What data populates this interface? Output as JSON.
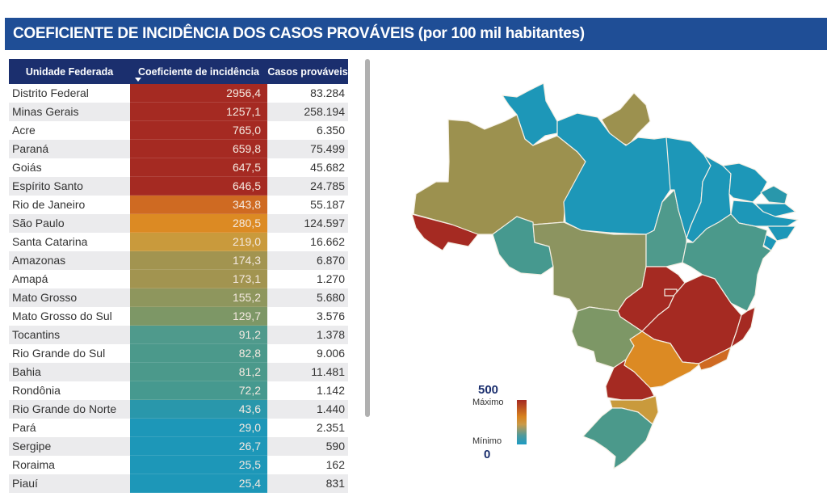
{
  "title": "COEFICIENTE DE INCIDÊNCIA DOS CASOS PROVÁVEIS (por 100 mil habitantes)",
  "table": {
    "headers": [
      "Unidade Federada",
      "Coeficiente de incidência",
      "Casos prováveis"
    ],
    "sorted_column": "Coeficiente de incidência",
    "sort_direction": "descending",
    "rows": [
      {
        "uf": "Distrito Federal",
        "coef": "2956,4",
        "casos": "83.284",
        "color": "#a52a22"
      },
      {
        "uf": "Minas Gerais",
        "coef": "1257,1",
        "casos": "258.194",
        "color": "#a52a22"
      },
      {
        "uf": "Acre",
        "coef": "765,0",
        "casos": "6.350",
        "color": "#a52a22"
      },
      {
        "uf": "Paraná",
        "coef": "659,8",
        "casos": "75.499",
        "color": "#a52a22"
      },
      {
        "uf": "Goiás",
        "coef": "647,5",
        "casos": "45.682",
        "color": "#a52a22"
      },
      {
        "uf": "Espírito Santo",
        "coef": "646,5",
        "casos": "24.785",
        "color": "#a52a22"
      },
      {
        "uf": "Rio de Janeiro",
        "coef": "343,8",
        "casos": "55.187",
        "color": "#cf6a22"
      },
      {
        "uf": "São Paulo",
        "coef": "280,5",
        "casos": "124.597",
        "color": "#dc8a23"
      },
      {
        "uf": "Santa Catarina",
        "coef": "219,0",
        "casos": "16.662",
        "color": "#c99a3c"
      },
      {
        "uf": "Amazonas",
        "coef": "174,3",
        "casos": "6.870",
        "color": "#a29450"
      },
      {
        "uf": "Amapá",
        "coef": "173,1",
        "casos": "1.270",
        "color": "#a29450"
      },
      {
        "uf": "Mato Grosso",
        "coef": "155,2",
        "casos": "5.680",
        "color": "#8e965d"
      },
      {
        "uf": "Mato Grosso do Sul",
        "coef": "129,7",
        "casos": "3.576",
        "color": "#7d9766"
      },
      {
        "uf": "Tocantins",
        "coef": "91,2",
        "casos": "1.378",
        "color": "#4f9a8c"
      },
      {
        "uf": "Rio Grande do Sul",
        "coef": "82,8",
        "casos": "9.006",
        "color": "#4b998b"
      },
      {
        "uf": "Bahia",
        "coef": "81,2",
        "casos": "11.481",
        "color": "#4b998b"
      },
      {
        "uf": "Rondônia",
        "coef": "72,2",
        "casos": "1.142",
        "color": "#46998f"
      },
      {
        "uf": "Rio Grande do Norte",
        "coef": "43,6",
        "casos": "1.440",
        "color": "#2997ab"
      },
      {
        "uf": "Pará",
        "coef": "29,0",
        "casos": "2.351",
        "color": "#1d97b8"
      },
      {
        "uf": "Sergipe",
        "coef": "26,7",
        "casos": "590",
        "color": "#1d97b8"
      },
      {
        "uf": "Roraima",
        "coef": "25,5",
        "casos": "162",
        "color": "#1d97b8"
      },
      {
        "uf": "Piauí",
        "coef": "25,4",
        "casos": "831",
        "color": "#1d97b8"
      }
    ]
  },
  "legend": {
    "max_value": "500",
    "max_label": "Máximo",
    "min_label": "Mínimo",
    "min_value": "0",
    "gradient": [
      "#a52a22",
      "#d8831f",
      "#c99a49",
      "#4f9a9c",
      "#1d9bc4"
    ]
  },
  "chart_data": {
    "type": "table",
    "title": "COEFICIENTE DE INCIDÊNCIA DOS CASOS PROVÁVEIS (por 100 mil habitantes)",
    "columns": [
      "Unidade Federada",
      "Coeficiente de incidência",
      "Casos prováveis"
    ],
    "categories": [
      "Distrito Federal",
      "Minas Gerais",
      "Acre",
      "Paraná",
      "Goiás",
      "Espírito Santo",
      "Rio de Janeiro",
      "São Paulo",
      "Santa Catarina",
      "Amazonas",
      "Amapá",
      "Mato Grosso",
      "Mato Grosso do Sul",
      "Tocantins",
      "Rio Grande do Sul",
      "Bahia",
      "Rondônia",
      "Rio Grande do Norte",
      "Pará",
      "Sergipe",
      "Roraima",
      "Piauí"
    ],
    "series": [
      {
        "name": "Coeficiente de incidência",
        "values": [
          2956.4,
          1257.1,
          765.0,
          659.8,
          647.5,
          646.5,
          343.8,
          280.5,
          219.0,
          174.3,
          173.1,
          155.2,
          129.7,
          91.2,
          82.8,
          81.2,
          72.2,
          43.6,
          29.0,
          26.7,
          25.5,
          25.4
        ]
      },
      {
        "name": "Casos prováveis",
        "values": [
          83284,
          258194,
          6350,
          75499,
          45682,
          24785,
          55187,
          124597,
          16662,
          6870,
          1270,
          5680,
          3576,
          1378,
          9006,
          11481,
          1142,
          1440,
          2351,
          590,
          162,
          831
        ]
      }
    ],
    "map": {
      "type": "choropleth",
      "region": "Brasil",
      "color_scale": {
        "min": 0,
        "max": 500,
        "min_label": "Mínimo",
        "max_label": "Máximo"
      }
    }
  },
  "map_states": [
    {
      "id": "AC",
      "color": "#a52a22"
    },
    {
      "id": "AM",
      "color": "#9c914f"
    },
    {
      "id": "RR",
      "color": "#1d97b8"
    },
    {
      "id": "AP",
      "color": "#9c914f"
    },
    {
      "id": "PA",
      "color": "#1d97b8"
    },
    {
      "id": "RO",
      "color": "#46998f"
    },
    {
      "id": "MT",
      "color": "#8c9460"
    },
    {
      "id": "TO",
      "color": "#4f9a8c"
    },
    {
      "id": "MA",
      "color": "#1d97b8"
    },
    {
      "id": "PI",
      "color": "#1d97b8"
    },
    {
      "id": "CE",
      "color": "#1d97b8"
    },
    {
      "id": "RN",
      "color": "#2997ab"
    },
    {
      "id": "PB",
      "color": "#1d97b8"
    },
    {
      "id": "PE",
      "color": "#1d97b8"
    },
    {
      "id": "AL",
      "color": "#1d97b8"
    },
    {
      "id": "SE",
      "color": "#1d97b8"
    },
    {
      "id": "BA",
      "color": "#4b998b"
    },
    {
      "id": "GO",
      "color": "#a52a22"
    },
    {
      "id": "DF",
      "color": "#a52a22"
    },
    {
      "id": "MG",
      "color": "#a52a22"
    },
    {
      "id": "ES",
      "color": "#a52a22"
    },
    {
      "id": "MS",
      "color": "#7d9766"
    },
    {
      "id": "SP",
      "color": "#dc8a23"
    },
    {
      "id": "RJ",
      "color": "#cf6a22"
    },
    {
      "id": "PR",
      "color": "#a52a22"
    },
    {
      "id": "SC",
      "color": "#c99a3c"
    },
    {
      "id": "RS",
      "color": "#4b998b"
    }
  ]
}
